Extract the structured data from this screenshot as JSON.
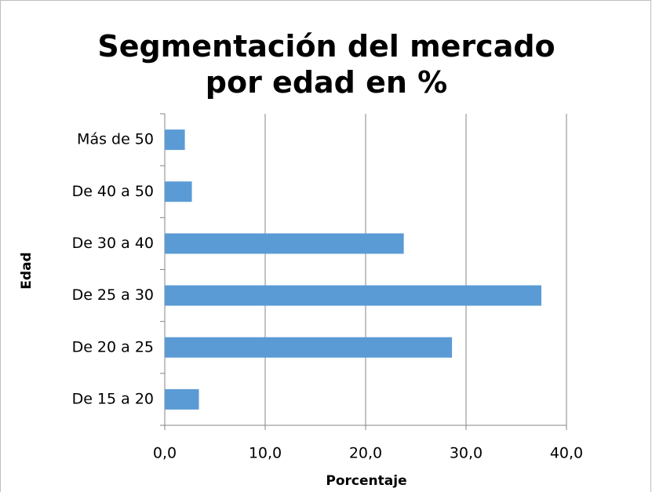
{
  "chart_data": {
    "type": "bar",
    "orientation": "horizontal",
    "title": "Segmentación del mercado por edad en %",
    "xlabel": "Porcentaje",
    "ylabel": "Edad",
    "categories": [
      "De 15 a 20",
      "De 20 a 25",
      "De 25 a 30",
      "De 30 a 40",
      "De 40 a 50",
      "Más de 50"
    ],
    "values": [
      3.4,
      28.6,
      37.5,
      23.8,
      2.7,
      2.0
    ],
    "color": "#5b9bd5",
    "xlim": [
      0,
      40
    ],
    "xticks": [
      {
        "value": 0,
        "label": "0,0"
      },
      {
        "value": 10,
        "label": "10,0"
      },
      {
        "value": 20,
        "label": "20,0"
      },
      {
        "value": 30,
        "label": "30,0"
      },
      {
        "value": 40,
        "label": "40,0"
      }
    ],
    "grid": true
  }
}
